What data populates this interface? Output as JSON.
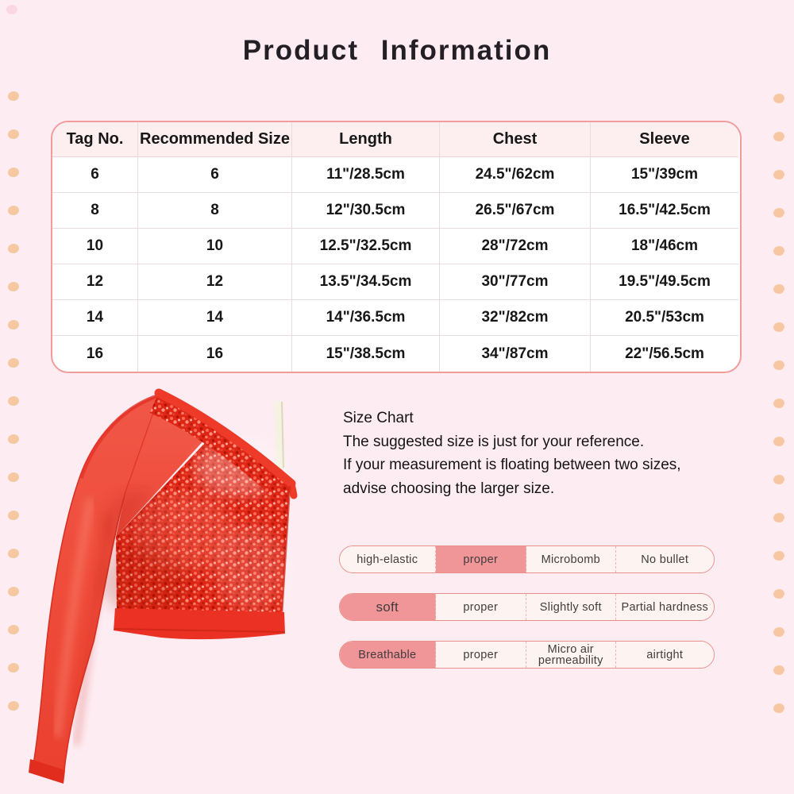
{
  "title": "Product Information",
  "size_table": {
    "columns": [
      "Tag No.",
      "Recommended Size",
      "Length",
      "Chest",
      "Sleeve"
    ],
    "rows": [
      [
        "6",
        "6",
        "11\"/28.5cm",
        "24.5\"/62cm",
        "15\"/39cm"
      ],
      [
        "8",
        "8",
        "12\"/30.5cm",
        "26.5\"/67cm",
        "16.5\"/42.5cm"
      ],
      [
        "10",
        "10",
        "12.5\"/32.5cm",
        "28\"/72cm",
        "18\"/46cm"
      ],
      [
        "12",
        "12",
        "13.5\"/34.5cm",
        "30\"/77cm",
        "19.5\"/49.5cm"
      ],
      [
        "14",
        "14",
        "14\"/36.5cm",
        "32\"/82cm",
        "20.5\"/53cm"
      ],
      [
        "16",
        "16",
        "15\"/38.5cm",
        "34\"/87cm",
        "22\"/56.5cm"
      ]
    ]
  },
  "size_note": {
    "heading": "Size Chart",
    "lines": [
      "The suggested size is just for your reference.",
      "If your measurement is floating between two sizes,",
      "advise choosing the larger size."
    ]
  },
  "attribute_bars": [
    {
      "segments": [
        {
          "label": "high-elastic",
          "highlight": false
        },
        {
          "label": "proper",
          "highlight": true
        },
        {
          "label": "Microbomb",
          "highlight": false
        },
        {
          "label": "No bullet",
          "highlight": false
        }
      ]
    },
    {
      "segments": [
        {
          "label": "soft",
          "highlight": true,
          "big": true
        },
        {
          "label": "proper",
          "highlight": false
        },
        {
          "label": "Slightly soft",
          "highlight": false
        },
        {
          "label": "Partial hardness",
          "highlight": false
        }
      ]
    },
    {
      "segments": [
        {
          "label": "Breathable",
          "highlight": true
        },
        {
          "label": "proper",
          "highlight": false
        },
        {
          "label": "Micro air permeability",
          "highlight": false
        },
        {
          "label": "airtight",
          "highlight": false
        }
      ]
    }
  ],
  "product_image": {
    "description": "Red one-shoulder sequin crop top with single long mesh sleeve and white strap"
  },
  "colors": {
    "background": "#fdedf3",
    "table_header_bg": "#fdeef0",
    "bar_highlight": "#f09598",
    "dot_peach": "#f6c8a2",
    "accent_red": "#ee3a28"
  }
}
